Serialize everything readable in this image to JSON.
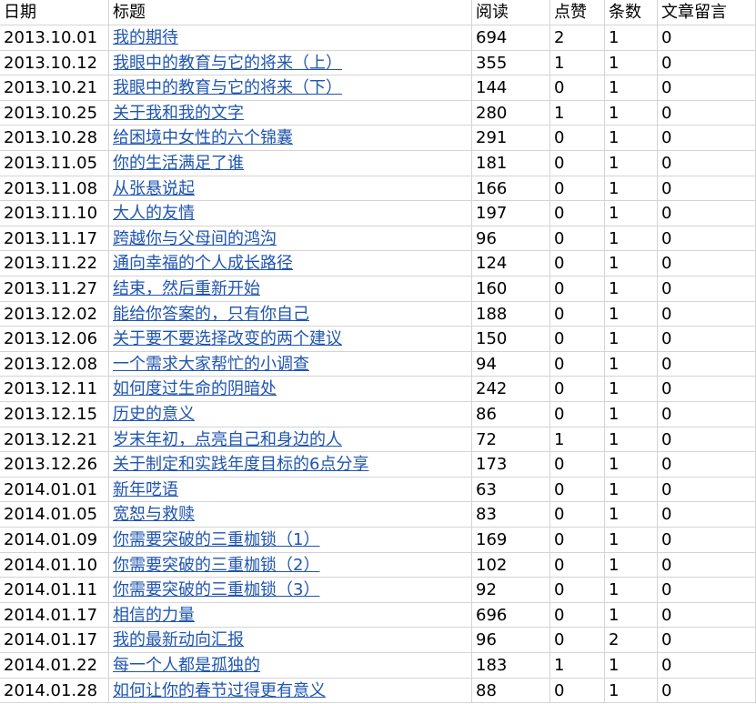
{
  "table": {
    "header": [
      "日期",
      "标题",
      "阅读",
      "点赞",
      "条数",
      "文章留言"
    ],
    "rows": [
      [
        "2013.10.01",
        "我的期待",
        694,
        2,
        1,
        0
      ],
      [
        "2013.10.12",
        "我眼中的教育与它的将来（上）",
        355,
        1,
        1,
        0
      ],
      [
        "2013.10.21",
        "我眼中的教育与它的将来（下）",
        144,
        0,
        1,
        0
      ],
      [
        "2013.10.25",
        "关于我和我的文字",
        280,
        1,
        1,
        0
      ],
      [
        "2013.10.28",
        "给困境中女性的六个锦囊",
        291,
        0,
        1,
        0
      ],
      [
        "2013.11.05",
        "你的生活满足了谁",
        181,
        0,
        1,
        0
      ],
      [
        "2013.11.08",
        "从张悬说起",
        166,
        0,
        1,
        0
      ],
      [
        "2013.11.10",
        "大人的友情",
        197,
        0,
        1,
        0
      ],
      [
        "2013.11.17",
        "跨越你与父母间的鸿沟",
        96,
        0,
        1,
        0
      ],
      [
        "2013.11.22",
        "通向幸福的个人成长路径",
        124,
        0,
        1,
        0
      ],
      [
        "2013.11.27",
        "结束，然后重新开始",
        160,
        0,
        1,
        0
      ],
      [
        "2013.12.02",
        "能给你答案的，只有你自己",
        188,
        0,
        1,
        0
      ],
      [
        "2013.12.06",
        "关于要不要选择改变的两个建议",
        150,
        0,
        1,
        0
      ],
      [
        "2013.12.08",
        "一个需求大家帮忙的小调查",
        94,
        0,
        1,
        0
      ],
      [
        "2013.12.11",
        "如何度过生命的阴暗处",
        242,
        0,
        1,
        0
      ],
      [
        "2013.12.15",
        "历史的意义",
        86,
        0,
        1,
        0
      ],
      [
        "2013.12.21",
        "岁末年初，点亮自己和身边的人",
        72,
        1,
        1,
        0
      ],
      [
        "2013.12.26",
        "关于制定和实践年度目标的6点分享",
        173,
        0,
        1,
        0
      ],
      [
        "2014.01.01",
        "新年呓语",
        63,
        0,
        1,
        0
      ],
      [
        "2014.01.05",
        "宽恕与救赎",
        83,
        0,
        1,
        0
      ],
      [
        "2014.01.09",
        "你需要突破的三重枷锁（1）",
        169,
        0,
        1,
        0
      ],
      [
        "2014.01.10",
        "你需要突破的三重枷锁（2）",
        102,
        0,
        1,
        0
      ],
      [
        "2014.01.11",
        "你需要突破的三重枷锁（3）",
        92,
        0,
        1,
        0
      ],
      [
        "2014.01.17",
        "相信的力量",
        696,
        0,
        1,
        0
      ],
      [
        "2014.01.17",
        "我的最新动向汇报",
        96,
        0,
        2,
        0
      ],
      [
        "2014.01.22",
        "每一个人都是孤独的",
        183,
        1,
        1,
        0
      ],
      [
        "2014.01.28",
        "如何让你的春节过得更有意义",
        88,
        0,
        1,
        0
      ]
    ]
  }
}
